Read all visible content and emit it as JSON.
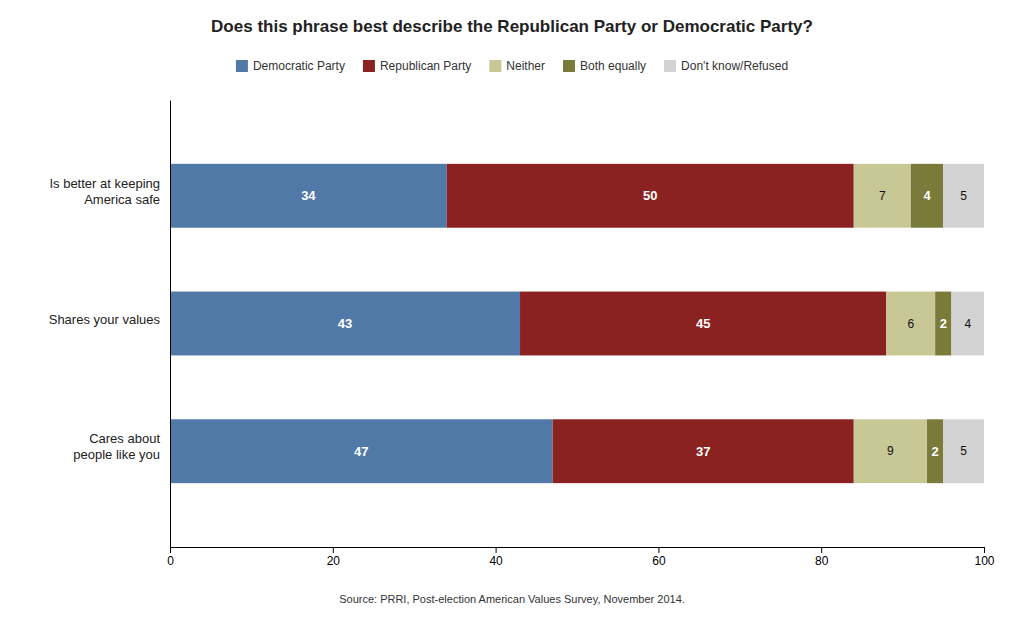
{
  "chart_data": {
    "type": "bar",
    "orientation": "horizontal",
    "stacked": true,
    "title": "Does this phrase best describe the Republican Party or Democratic Party?",
    "categories": [
      "Is better at keeping\nAmerica safe",
      "Shares your values",
      "Cares about\npeople like you"
    ],
    "series": [
      {
        "name": "Democratic Party",
        "color": "#5079a8",
        "values": [
          34,
          43,
          47
        ]
      },
      {
        "name": "Republican Party",
        "color": "#8b2222",
        "values": [
          50,
          45,
          37
        ]
      },
      {
        "name": "Neither",
        "color": "#c8c896",
        "values": [
          7,
          6,
          9
        ]
      },
      {
        "name": "Both equally",
        "color": "#7a7a3a",
        "values": [
          4,
          2,
          2
        ]
      },
      {
        "name": "Don't know/Refused",
        "color": "#d3d3d3",
        "values": [
          5,
          4,
          5
        ]
      }
    ],
    "xlim": [
      0,
      100
    ],
    "xticks": [
      0,
      20,
      40,
      60,
      80,
      100
    ],
    "data_labels": true,
    "grid": false,
    "legend": "top",
    "annotations": [
      "Source: PRRI, Post-election American Values Survey, November 2014."
    ]
  }
}
